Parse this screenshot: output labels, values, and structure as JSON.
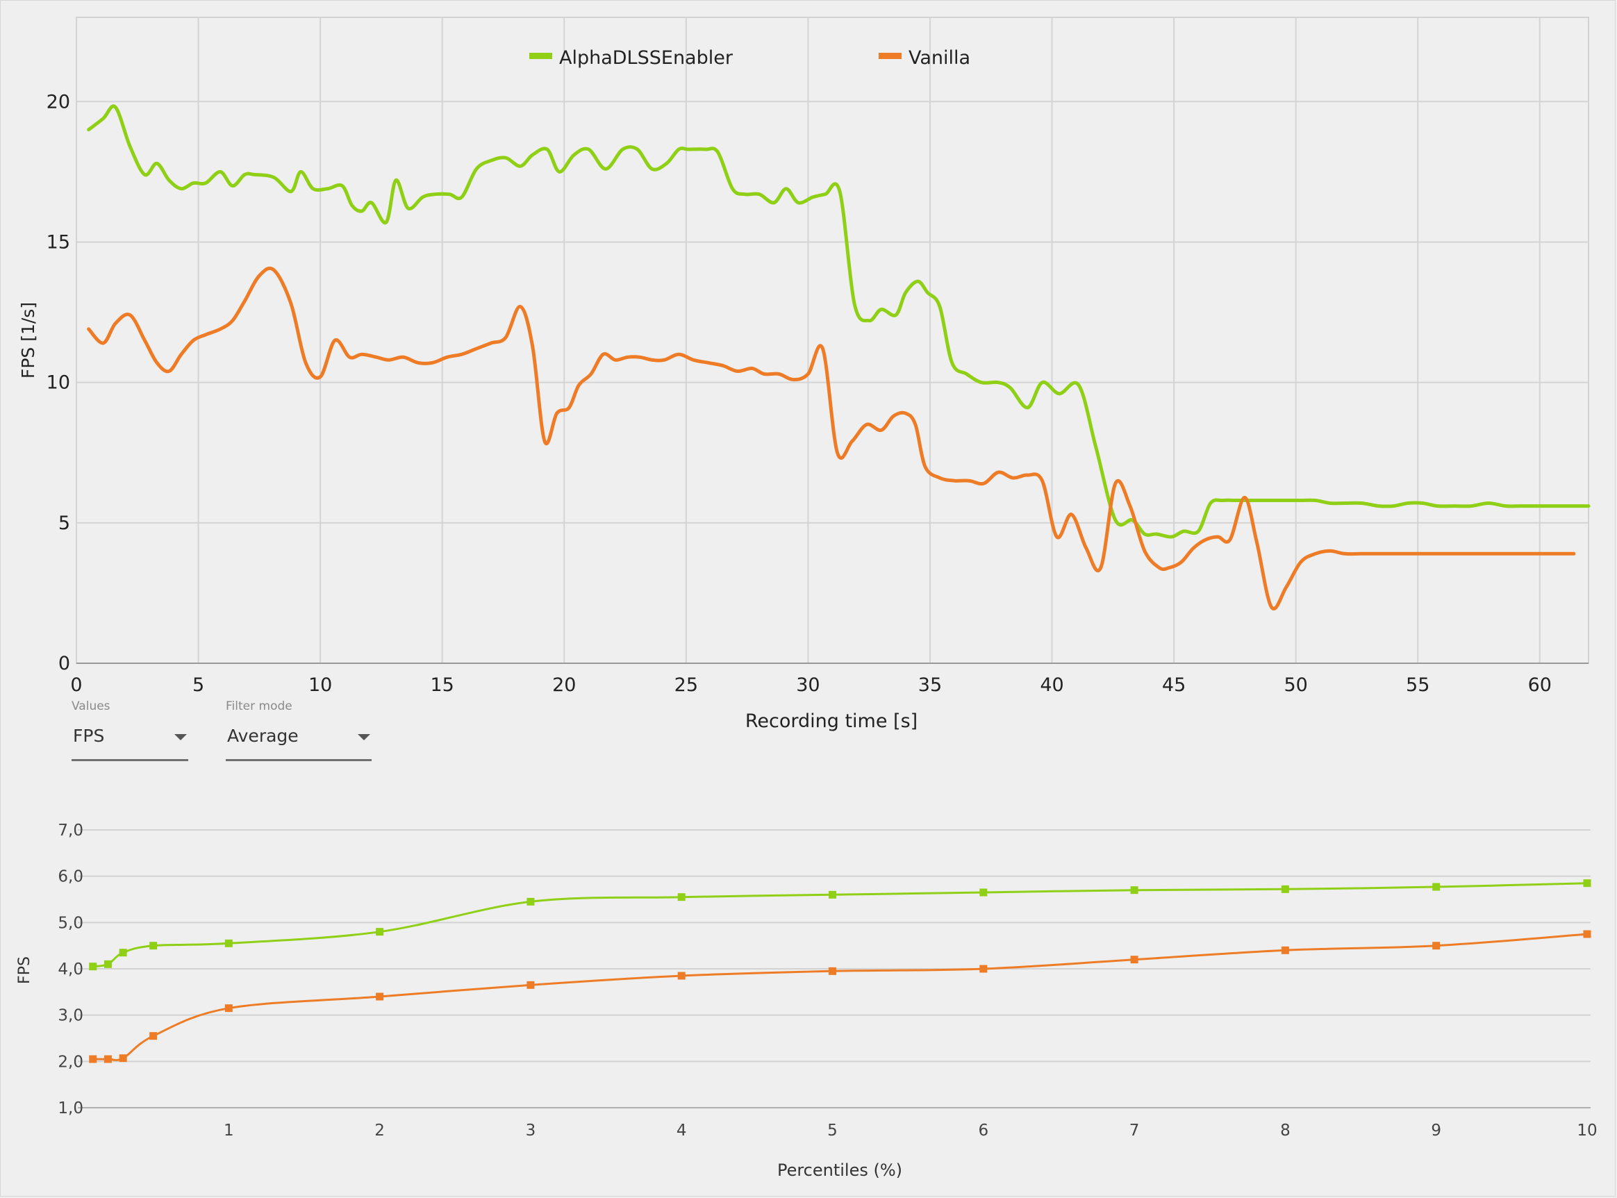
{
  "controls": {
    "values": {
      "label": "Values",
      "selected": "FPS"
    },
    "filter": {
      "label": "Filter mode",
      "selected": "Average"
    }
  },
  "chart_data": [
    {
      "type": "line",
      "title": "",
      "xlabel": "Recording time [s]",
      "ylabel": "FPS [1/s]",
      "xlim": [
        0,
        62
      ],
      "ylim": [
        0,
        23
      ],
      "xticks": [
        "0",
        "5",
        "10",
        "15",
        "20",
        "25",
        "30",
        "35",
        "40",
        "45",
        "50",
        "55",
        "60"
      ],
      "yticks": [
        "0",
        "5",
        "10",
        "15",
        "20"
      ],
      "grid": true,
      "legend": "top-center",
      "series": [
        {
          "name": "AlphaDLSSEnabler",
          "color": "#8fd016",
          "x": [
            0.5,
            1.1,
            1.6,
            2.2,
            2.8,
            3.3,
            3.8,
            4.3,
            4.8,
            5.3,
            5.9,
            6.4,
            6.9,
            7.3,
            8.1,
            8.8,
            9.2,
            9.7,
            10.3,
            10.9,
            11.3,
            11.7,
            12.1,
            12.7,
            13.1,
            13.6,
            14.2,
            14.7,
            15.3,
            15.8,
            16.4,
            17.0,
            17.6,
            18.2,
            18.7,
            19.3,
            19.8,
            20.4,
            21.0,
            21.7,
            22.4,
            23.0,
            23.6,
            24.2,
            24.7,
            25.1,
            25.8,
            26.3,
            26.9,
            27.4,
            28.0,
            28.6,
            29.1,
            29.6,
            30.2,
            30.7,
            31.3,
            31.9,
            32.5,
            33.0,
            33.6,
            34.0,
            34.5,
            34.9,
            35.4,
            35.9,
            36.5,
            37.1,
            37.8,
            38.3,
            39.0,
            39.6,
            40.3,
            41.1,
            41.8,
            42.6,
            43.3,
            43.8,
            44.3,
            44.9,
            45.4,
            46.0,
            46.5,
            47.0,
            47.6,
            48.3,
            49.0,
            49.6,
            50.2,
            50.8,
            51.4,
            52.0,
            52.7,
            53.4,
            54.0,
            54.6,
            55.2,
            55.8,
            56.5,
            57.2,
            57.9,
            58.6,
            59.2,
            59.9,
            60.5,
            61.1,
            61.6,
            62.0
          ],
          "y": [
            19.0,
            19.4,
            19.8,
            18.4,
            17.4,
            17.8,
            17.2,
            16.9,
            17.1,
            17.1,
            17.5,
            17.0,
            17.4,
            17.4,
            17.3,
            16.8,
            17.5,
            16.9,
            16.9,
            17.0,
            16.3,
            16.1,
            16.4,
            15.7,
            17.2,
            16.2,
            16.6,
            16.7,
            16.7,
            16.6,
            17.6,
            17.9,
            18.0,
            17.7,
            18.1,
            18.3,
            17.5,
            18.1,
            18.3,
            17.6,
            18.3,
            18.3,
            17.6,
            17.8,
            18.3,
            18.3,
            18.3,
            18.2,
            16.9,
            16.7,
            16.7,
            16.4,
            16.9,
            16.4,
            16.6,
            16.7,
            16.8,
            12.8,
            12.2,
            12.6,
            12.4,
            13.2,
            13.6,
            13.2,
            12.7,
            10.7,
            10.3,
            10.0,
            10.0,
            9.8,
            9.1,
            10.0,
            9.6,
            9.9,
            7.7,
            5.1,
            5.1,
            4.6,
            4.6,
            4.5,
            4.7,
            4.7,
            5.7,
            5.8,
            5.8,
            5.8,
            5.8,
            5.8,
            5.8,
            5.8,
            5.7,
            5.7,
            5.7,
            5.6,
            5.6,
            5.7,
            5.7,
            5.6,
            5.6,
            5.6,
            5.7,
            5.6,
            5.6,
            5.6,
            5.6,
            5.6,
            5.6,
            5.6
          ]
        },
        {
          "name": "Vanilla",
          "color": "#ee7c27",
          "x": [
            0.5,
            1.1,
            1.6,
            2.2,
            2.8,
            3.3,
            3.8,
            4.3,
            4.8,
            5.3,
            5.9,
            6.4,
            6.9,
            7.5,
            8.1,
            8.8,
            9.4,
            10.0,
            10.6,
            11.2,
            11.7,
            12.3,
            12.8,
            13.4,
            14.0,
            14.6,
            15.2,
            15.8,
            16.4,
            17.0,
            17.6,
            18.2,
            18.7,
            19.2,
            19.7,
            20.2,
            20.6,
            21.1,
            21.6,
            22.1,
            22.6,
            23.1,
            23.6,
            24.1,
            24.7,
            25.3,
            25.9,
            26.5,
            27.1,
            27.7,
            28.2,
            28.8,
            29.4,
            30.0,
            30.6,
            31.2,
            31.8,
            32.4,
            33.0,
            33.5,
            34.0,
            34.4,
            34.8,
            35.4,
            36.0,
            36.6,
            37.2,
            37.8,
            38.4,
            39.0,
            39.6,
            40.2,
            40.8,
            41.4,
            42.0,
            42.6,
            43.2,
            43.8,
            44.4,
            44.8,
            45.3,
            45.8,
            46.3,
            46.8,
            47.3,
            47.9,
            48.4,
            49.0,
            49.6,
            50.2,
            50.8,
            51.4,
            52.0,
            52.7,
            53.4,
            54.1,
            54.7,
            55.1,
            55.4,
            55.9,
            56.5,
            57.1,
            57.7,
            58.4,
            59.1,
            59.7,
            60.3,
            60.9,
            61.4
          ],
          "y": [
            11.9,
            11.4,
            12.1,
            12.4,
            11.5,
            10.7,
            10.4,
            11.0,
            11.5,
            11.7,
            11.9,
            12.2,
            12.9,
            13.8,
            14.0,
            12.8,
            10.7,
            10.2,
            11.5,
            10.9,
            11.0,
            10.9,
            10.8,
            10.9,
            10.7,
            10.7,
            10.9,
            11.0,
            11.2,
            11.4,
            11.6,
            12.7,
            11.3,
            7.9,
            8.9,
            9.1,
            9.9,
            10.3,
            11.0,
            10.8,
            10.9,
            10.9,
            10.8,
            10.8,
            11.0,
            10.8,
            10.7,
            10.6,
            10.4,
            10.5,
            10.3,
            10.3,
            10.1,
            10.3,
            11.2,
            7.5,
            7.9,
            8.5,
            8.3,
            8.8,
            8.9,
            8.5,
            7.0,
            6.6,
            6.5,
            6.5,
            6.4,
            6.8,
            6.6,
            6.7,
            6.5,
            4.5,
            5.3,
            4.1,
            3.4,
            6.4,
            5.6,
            4.0,
            3.4,
            3.4,
            3.6,
            4.1,
            4.4,
            4.5,
            4.4,
            5.9,
            4.3,
            2.0,
            2.7,
            3.6,
            3.9,
            4.0,
            3.9,
            3.9,
            3.9,
            3.9,
            3.9,
            3.9,
            3.9,
            3.9,
            3.9,
            3.9,
            3.9,
            3.9,
            3.9,
            3.9,
            3.9,
            3.9,
            3.9
          ]
        }
      ]
    },
    {
      "type": "line",
      "title": "",
      "xlabel": "Percentiles (%)",
      "ylabel": "FPS",
      "xlim": [
        0,
        10
      ],
      "ylim": [
        1,
        7
      ],
      "xticks": [
        "1",
        "2",
        "3",
        "4",
        "5",
        "6",
        "7",
        "8",
        "9",
        "10"
      ],
      "yticks": [
        "1,0",
        "2,0",
        "3,0",
        "4,0",
        "5,0",
        "6,0",
        "7,0"
      ],
      "grid": true,
      "markers": "square",
      "series": [
        {
          "name": "AlphaDLSSEnabler",
          "color": "#8fd016",
          "x": [
            0.1,
            0.2,
            0.3,
            0.5,
            1,
            2,
            3,
            4,
            5,
            6,
            7,
            8,
            9,
            10
          ],
          "y": [
            4.05,
            4.1,
            4.35,
            4.5,
            4.55,
            4.8,
            5.45,
            5.55,
            5.6,
            5.65,
            5.7,
            5.72,
            5.77,
            5.85
          ]
        },
        {
          "name": "Vanilla",
          "color": "#ee7c27",
          "x": [
            0.1,
            0.2,
            0.3,
            0.5,
            1,
            2,
            3,
            4,
            5,
            6,
            7,
            8,
            9,
            10
          ],
          "y": [
            2.05,
            2.05,
            2.07,
            2.55,
            3.15,
            3.4,
            3.65,
            3.85,
            3.95,
            4.0,
            4.2,
            4.4,
            4.5,
            4.75
          ]
        }
      ]
    }
  ]
}
